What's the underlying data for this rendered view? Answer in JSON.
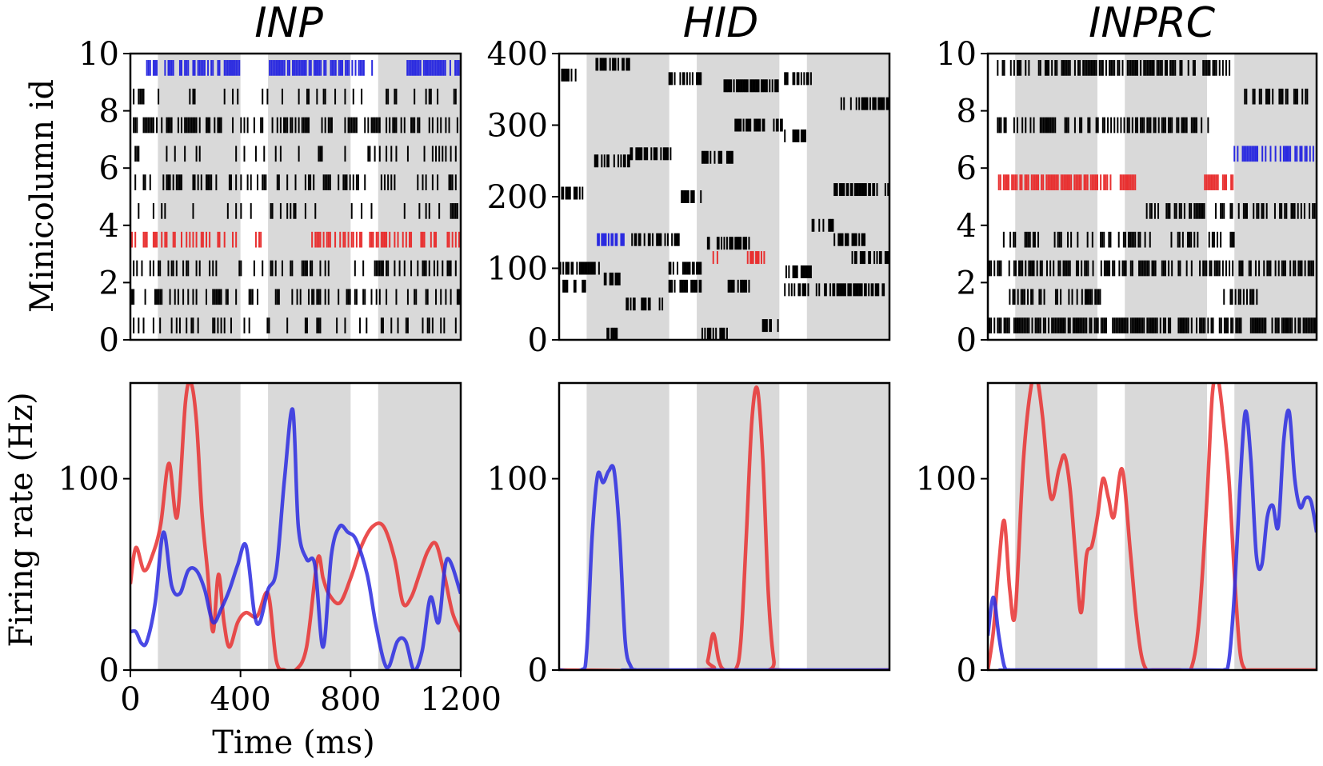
{
  "figure": {
    "x_label": "Time (ms)",
    "raster_y_label": "Minicolumn id",
    "rate_y_label": "Firing rate (Hz)"
  },
  "colors": {
    "red": "#e83030",
    "blue": "#2a2ae0",
    "black": "#000000",
    "shade": "#d9d9d9"
  },
  "chart_data": [
    {
      "id": "inp_raster",
      "type": "raster",
      "title": "INP",
      "xlim": [
        0,
        1200
      ],
      "ylim": [
        0,
        10
      ],
      "yticks": [
        "0",
        "2",
        "4",
        "6",
        "8",
        "10"
      ],
      "xticks": [],
      "shaded_intervals": [
        [
          100,
          400
        ],
        [
          500,
          800
        ],
        [
          900,
          1200
        ]
      ],
      "rows": [
        {
          "id": 9.5,
          "color": "blue",
          "spans": [
            [
              60,
              400
            ],
            [
              500,
              880
            ],
            [
              1000,
              1200
            ]
          ],
          "density": 0.7
        },
        {
          "id": 8.5,
          "color": "black",
          "spans": [
            [
              0,
              1200
            ]
          ],
          "density": 0.2
        },
        {
          "id": 7.5,
          "color": "black",
          "spans": [
            [
              0,
              1200
            ]
          ],
          "density": 0.45
        },
        {
          "id": 6.5,
          "color": "black",
          "spans": [
            [
              0,
              1200
            ]
          ],
          "density": 0.2
        },
        {
          "id": 5.5,
          "color": "black",
          "spans": [
            [
              0,
              1200
            ]
          ],
          "density": 0.3
        },
        {
          "id": 4.5,
          "color": "black",
          "spans": [
            [
              0,
              1200
            ]
          ],
          "density": 0.15
        },
        {
          "id": 3.5,
          "color": "red",
          "spans": [
            [
              0,
              400
            ],
            [
              450,
              500
            ],
            [
              660,
              1200
            ]
          ],
          "density": 0.45
        },
        {
          "id": 2.5,
          "color": "black",
          "spans": [
            [
              0,
              1200
            ]
          ],
          "density": 0.35
        },
        {
          "id": 1.5,
          "color": "black",
          "spans": [
            [
              0,
              1200
            ]
          ],
          "density": 0.3
        },
        {
          "id": 0.5,
          "color": "black",
          "spans": [
            [
              0,
              1200
            ]
          ],
          "density": 0.25
        }
      ]
    },
    {
      "id": "hid_raster",
      "type": "raster",
      "title": "HID",
      "xlim": [
        0,
        1200
      ],
      "ylim": [
        0,
        400
      ],
      "yticks": [
        "0",
        "100",
        "200",
        "300",
        "400"
      ],
      "xticks": [],
      "shaded_intervals": [
        [
          100,
          400
        ],
        [
          500,
          800
        ],
        [
          900,
          1200
        ]
      ],
      "blocks": [
        {
          "y": 385,
          "x0": 130,
          "x1": 260,
          "color": "black"
        },
        {
          "y": 370,
          "x0": 5,
          "x1": 80,
          "color": "black"
        },
        {
          "y": 365,
          "x0": 400,
          "x1": 520,
          "color": "black"
        },
        {
          "y": 355,
          "x0": 600,
          "x1": 800,
          "color": "black"
        },
        {
          "y": 365,
          "x0": 820,
          "x1": 920,
          "color": "black"
        },
        {
          "y": 330,
          "x0": 1020,
          "x1": 1200,
          "color": "black"
        },
        {
          "y": 300,
          "x0": 640,
          "x1": 820,
          "color": "black"
        },
        {
          "y": 285,
          "x0": 820,
          "x1": 900,
          "color": "black"
        },
        {
          "y": 260,
          "x0": 260,
          "x1": 420,
          "color": "black"
        },
        {
          "y": 255,
          "x0": 520,
          "x1": 640,
          "color": "black"
        },
        {
          "y": 250,
          "x0": 120,
          "x1": 260,
          "color": "black"
        },
        {
          "y": 210,
          "x0": 1000,
          "x1": 1200,
          "color": "black"
        },
        {
          "y": 205,
          "x0": 0,
          "x1": 100,
          "color": "black"
        },
        {
          "y": 200,
          "x0": 440,
          "x1": 520,
          "color": "black"
        },
        {
          "y": 160,
          "x0": 920,
          "x1": 1000,
          "color": "black"
        },
        {
          "y": 140,
          "x0": 140,
          "x1": 240,
          "color": "blue"
        },
        {
          "y": 140,
          "x0": 260,
          "x1": 440,
          "color": "black"
        },
        {
          "y": 135,
          "x0": 540,
          "x1": 700,
          "color": "black"
        },
        {
          "y": 140,
          "x0": 1000,
          "x1": 1120,
          "color": "black"
        },
        {
          "y": 115,
          "x0": 560,
          "x1": 580,
          "color": "red"
        },
        {
          "y": 115,
          "x0": 680,
          "x1": 760,
          "color": "red"
        },
        {
          "y": 115,
          "x0": 1040,
          "x1": 1200,
          "color": "black"
        },
        {
          "y": 100,
          "x0": 0,
          "x1": 150,
          "color": "black"
        },
        {
          "y": 100,
          "x0": 400,
          "x1": 520,
          "color": "black"
        },
        {
          "y": 95,
          "x0": 820,
          "x1": 920,
          "color": "black"
        },
        {
          "y": 85,
          "x0": 160,
          "x1": 240,
          "color": "black"
        },
        {
          "y": 75,
          "x0": 0,
          "x1": 100,
          "color": "black"
        },
        {
          "y": 75,
          "x0": 400,
          "x1": 520,
          "color": "black"
        },
        {
          "y": 75,
          "x0": 600,
          "x1": 700,
          "color": "black"
        },
        {
          "y": 70,
          "x0": 820,
          "x1": 920,
          "color": "black"
        },
        {
          "y": 70,
          "x0": 930,
          "x1": 1200,
          "color": "black"
        },
        {
          "y": 50,
          "x0": 240,
          "x1": 380,
          "color": "black"
        },
        {
          "y": 20,
          "x0": 740,
          "x1": 800,
          "color": "black"
        },
        {
          "y": 8,
          "x0": 170,
          "x1": 230,
          "color": "black"
        },
        {
          "y": 8,
          "x0": 520,
          "x1": 620,
          "color": "black"
        }
      ]
    },
    {
      "id": "inprc_raster",
      "type": "raster",
      "title": "INPRC",
      "xlim": [
        0,
        1200
      ],
      "ylim": [
        0,
        10
      ],
      "yticks": [
        "0",
        "2",
        "4",
        "6",
        "8",
        "10"
      ],
      "xticks": [],
      "shaded_intervals": [
        [
          100,
          400
        ],
        [
          500,
          800
        ],
        [
          900,
          1200
        ]
      ],
      "rows": [
        {
          "id": 9.5,
          "color": "black",
          "spans": [
            [
              30,
              900
            ]
          ],
          "density": 0.6
        },
        {
          "id": 8.5,
          "color": "black",
          "spans": [
            [
              920,
              1200
            ]
          ],
          "density": 0.4
        },
        {
          "id": 7.5,
          "color": "black",
          "spans": [
            [
              30,
              820
            ]
          ],
          "density": 0.5
        },
        {
          "id": 6.5,
          "color": "blue",
          "spans": [
            [
              900,
              1200
            ]
          ],
          "density": 0.7
        },
        {
          "id": 5.5,
          "color": "red",
          "spans": [
            [
              40,
              550
            ],
            [
              780,
              900
            ]
          ],
          "density": 0.7
        },
        {
          "id": 4.5,
          "color": "black",
          "spans": [
            [
              580,
              1200
            ]
          ],
          "density": 0.5
        },
        {
          "id": 3.5,
          "color": "black",
          "spans": [
            [
              40,
              900
            ]
          ],
          "density": 0.4
        },
        {
          "id": 2.5,
          "color": "black",
          "spans": [
            [
              0,
              1200
            ]
          ],
          "density": 0.55
        },
        {
          "id": 1.5,
          "color": "black",
          "spans": [
            [
              80,
              420
            ],
            [
              850,
              1000
            ]
          ],
          "density": 0.4
        },
        {
          "id": 0.5,
          "color": "black",
          "spans": [
            [
              0,
              1200
            ]
          ],
          "density": 0.7
        }
      ]
    },
    {
      "id": "inp_rate",
      "type": "line",
      "title": "",
      "xlim": [
        0,
        1200
      ],
      "ylim": [
        0,
        150
      ],
      "xticks": [
        "0",
        "400",
        "800",
        "1200"
      ],
      "yticks": [
        "0",
        "100"
      ],
      "shaded_intervals": [
        [
          100,
          400
        ],
        [
          500,
          800
        ],
        [
          900,
          1200
        ]
      ],
      "series": [
        {
          "name": "red",
          "color": "red",
          "x": [
            0,
            20,
            50,
            80,
            110,
            140,
            170,
            200,
            220,
            240,
            260,
            280,
            300,
            320,
            340,
            360,
            390,
            420,
            460,
            500,
            530,
            560,
            600,
            640,
            680,
            700,
            720,
            760,
            800,
            840,
            880,
            920,
            960,
            990,
            1020,
            1050,
            1080,
            1110,
            1140,
            1170,
            1200
          ],
          "y": [
            45,
            64,
            52,
            60,
            76,
            108,
            80,
            140,
            150,
            130,
            82,
            52,
            20,
            50,
            25,
            12,
            25,
            30,
            28,
            40,
            5,
            0,
            0,
            12,
            58,
            48,
            40,
            35,
            48,
            65,
            75,
            75,
            58,
            35,
            38,
            50,
            62,
            66,
            50,
            30,
            20
          ]
        },
        {
          "name": "blue",
          "color": "blue",
          "x": [
            0,
            20,
            40,
            60,
            90,
            120,
            150,
            180,
            210,
            240,
            270,
            300,
            330,
            360,
            390,
            420,
            450,
            470,
            500,
            530,
            560,
            590,
            610,
            640,
            670,
            700,
            730,
            760,
            790,
            820,
            860,
            890,
            920,
            940,
            970,
            1000,
            1030,
            1060,
            1090,
            1120,
            1150,
            1200
          ],
          "y": [
            20,
            20,
            14,
            15,
            35,
            72,
            44,
            40,
            52,
            52,
            42,
            25,
            32,
            42,
            55,
            65,
            30,
            25,
            42,
            52,
            100,
            136,
            75,
            58,
            55,
            12,
            60,
            75,
            72,
            68,
            50,
            25,
            5,
            2,
            15,
            15,
            0,
            10,
            38,
            25,
            58,
            40
          ]
        }
      ]
    },
    {
      "id": "hid_rate",
      "type": "line",
      "title": "",
      "xlim": [
        0,
        1200
      ],
      "ylim": [
        0,
        150
      ],
      "xticks": [],
      "yticks": [
        "0",
        "100"
      ],
      "shaded_intervals": [
        [
          100,
          400
        ],
        [
          500,
          800
        ],
        [
          900,
          1200
        ]
      ],
      "series": [
        {
          "name": "red",
          "color": "red",
          "x": [
            0,
            520,
            540,
            560,
            580,
            600,
            640,
            660,
            680,
            700,
            720,
            740,
            760,
            780,
            800,
            1200
          ],
          "y": [
            0,
            0,
            5,
            19,
            5,
            0,
            0,
            15,
            70,
            130,
            147,
            110,
            40,
            5,
            0,
            0
          ]
        },
        {
          "name": "blue",
          "color": "blue",
          "x": [
            0,
            80,
            100,
            120,
            140,
            160,
            180,
            200,
            220,
            240,
            260,
            280,
            300,
            1200
          ],
          "y": [
            0,
            0,
            10,
            70,
            102,
            98,
            104,
            104,
            70,
            15,
            2,
            0,
            0,
            0
          ]
        }
      ]
    },
    {
      "id": "inprc_rate",
      "type": "line",
      "title": "",
      "xlim": [
        0,
        1200
      ],
      "ylim": [
        0,
        150
      ],
      "xticks": [],
      "yticks": [
        "0",
        "100"
      ],
      "shaded_intervals": [
        [
          100,
          400
        ],
        [
          500,
          800
        ],
        [
          900,
          1200
        ]
      ],
      "series": [
        {
          "name": "red",
          "color": "red",
          "x": [
            0,
            20,
            40,
            60,
            80,
            100,
            130,
            160,
            180,
            200,
            230,
            260,
            280,
            300,
            320,
            340,
            360,
            380,
            400,
            420,
            440,
            460,
            490,
            520,
            540,
            560,
            580,
            600,
            650,
            700,
            740,
            770,
            800,
            820,
            840,
            860,
            880,
            900,
            920,
            940,
            960,
            1200
          ],
          "y": [
            0,
            20,
            55,
            78,
            42,
            30,
            110,
            150,
            152,
            132,
            90,
            105,
            112,
            95,
            60,
            30,
            60,
            65,
            80,
            100,
            90,
            80,
            105,
            62,
            30,
            8,
            0,
            0,
            0,
            0,
            0,
            25,
            90,
            145,
            152,
            130,
            100,
            50,
            10,
            0,
            0,
            0
          ]
        },
        {
          "name": "blue",
          "color": "blue",
          "x": [
            0,
            20,
            40,
            60,
            80,
            100,
            800,
            860,
            880,
            900,
            920,
            940,
            960,
            980,
            1000,
            1020,
            1040,
            1060,
            1080,
            1100,
            1120,
            1140,
            1160,
            1180,
            1200
          ],
          "y": [
            18,
            38,
            18,
            2,
            0,
            0,
            0,
            0,
            5,
            40,
            95,
            135,
            110,
            60,
            55,
            80,
            86,
            75,
            120,
            135,
            100,
            85,
            90,
            88,
            72
          ]
        }
      ]
    }
  ]
}
